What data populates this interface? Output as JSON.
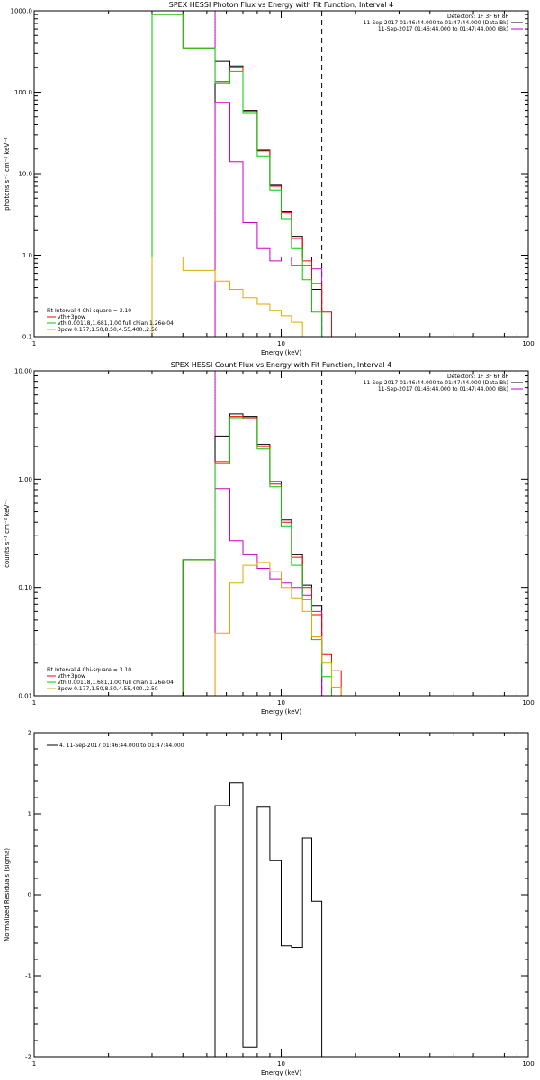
{
  "chart_data": [
    {
      "type": "line",
      "title": "SPEX HESSI Photon Flux vs Energy with Fit Function, Interval 4",
      "xlabel": "Energy (keV)",
      "ylabel": "photons s⁻¹ cm⁻² keV⁻¹",
      "xscale": "log",
      "yscale": "log",
      "xlim": [
        1,
        100
      ],
      "ylim": [
        0.1,
        1000
      ],
      "x_ticks": [
        "1",
        "10",
        "100"
      ],
      "y_ticks": [
        "0.1",
        "1.0",
        "10.0",
        "100.0",
        "1000.0"
      ],
      "vlines": [
        {
          "x": 5.4,
          "style": "dotted",
          "color": "#000000"
        },
        {
          "x": 5.4,
          "style": "solid",
          "color": "#cc00cc"
        },
        {
          "x": 14.6,
          "style": "dashed",
          "color": "#000000"
        }
      ],
      "legend_top": {
        "position": "top-right",
        "lines": [
          {
            "text": "Detectors: 1F 3F 6F 8F",
            "color": ""
          },
          {
            "text": "11-Sep-2017 01:46:44.000 to 01:47:44.000 (Data-Bk)",
            "color": "#000000"
          },
          {
            "text": "11-Sep-2017 01:46:44.000 to 01:47:44.000 (Bk)",
            "color": "#cc00cc"
          }
        ]
      },
      "legend_bottom": {
        "position": "bottom-left",
        "lines": [
          {
            "text": "Fit Interval 4   Chi-square = 3.10",
            "color": ""
          },
          {
            "text": "vth+3pow",
            "color": "#ff0000"
          },
          {
            "text": "vth 0.00118,1.681,1.00  full chian 1.26e-04",
            "color": "#00cc00"
          },
          {
            "text": "3pow 0.177,1.50,8.50,4.55,400.,2.50",
            "color": "#ddaa00"
          }
        ]
      },
      "edges": [
        3.0,
        4.0,
        5.4,
        6.2,
        7.0,
        8.0,
        9.0,
        10.0,
        11.0,
        12.2,
        13.3,
        14.6,
        16.0,
        17.5
      ],
      "series": [
        {
          "name": "Data-Bk",
          "color": "#000000",
          "style": "step",
          "values": [
            null,
            null,
            240,
            210,
            60,
            19,
            7.2,
            3.4,
            1.7,
            0.95,
            0.38,
            0.1,
            null
          ]
        },
        {
          "name": "Bk",
          "color": "#cc00cc",
          "style": "step",
          "values": [
            null,
            null,
            75,
            14,
            2.5,
            1.2,
            0.85,
            0.95,
            0.75,
            0.75,
            0.68,
            null,
            null
          ]
        },
        {
          "name": "vth+3pow",
          "color": "#ff0000",
          "style": "step",
          "values": [
            900,
            350,
            135,
            200,
            58,
            19.5,
            7,
            3.3,
            1.6,
            0.85,
            0.45,
            0.2,
            0.1
          ]
        },
        {
          "name": "vth",
          "color": "#00cc00",
          "style": "step",
          "values": [
            900,
            350,
            130,
            180,
            55,
            16.5,
            6.3,
            2.8,
            1.2,
            0.5,
            0.2,
            0.1,
            null
          ]
        },
        {
          "name": "3pow",
          "color": "#ddaa00",
          "style": "step",
          "values": [
            0.95,
            0.65,
            0.48,
            0.38,
            0.3,
            0.25,
            0.21,
            0.18,
            0.15,
            0.1,
            null,
            null,
            null
          ]
        }
      ]
    },
    {
      "type": "line",
      "title": "SPEX HESSI Count Flux vs Energy with Fit Function, Interval 4",
      "xlabel": "Energy (keV)",
      "ylabel": "counts s⁻¹ cm⁻² keV⁻¹",
      "xscale": "log",
      "yscale": "log",
      "xlim": [
        1,
        100
      ],
      "ylim": [
        0.01,
        10
      ],
      "x_ticks": [
        "1",
        "10",
        "100"
      ],
      "y_ticks": [
        "0.01",
        "0.10",
        "1.00",
        "10.00"
      ],
      "vlines": [
        {
          "x": 5.4,
          "style": "dotted",
          "color": "#000000"
        },
        {
          "x": 5.4,
          "style": "solid",
          "color": "#cc00cc"
        },
        {
          "x": 14.6,
          "style": "dashed",
          "color": "#000000"
        }
      ],
      "legend_top": {
        "position": "top-right",
        "lines": [
          {
            "text": "Detectors: 1F 3F 6F 8F",
            "color": ""
          },
          {
            "text": "11-Sep-2017 01:46:44.000 to 01:47:44.000 (Data-Bk)",
            "color": "#000000"
          },
          {
            "text": "11-Sep-2017 01:46:44.000 to 01:47:44.000 (Bk)",
            "color": "#cc00cc"
          }
        ]
      },
      "legend_bottom": {
        "position": "bottom-left",
        "lines": [
          {
            "text": "Fit Interval 4   Chi-square = 3.10",
            "color": ""
          },
          {
            "text": "vth+3pow",
            "color": "#ff0000"
          },
          {
            "text": "vth 0.00118,1.681,1.00  full chian 1.26e-04",
            "color": "#00cc00"
          },
          {
            "text": "3pow 0.177,1.50,8.50,4.55,400.,2.50",
            "color": "#ddaa00"
          }
        ]
      },
      "edges": [
        3.0,
        4.0,
        5.4,
        6.2,
        7.0,
        8.0,
        9.0,
        10.0,
        11.0,
        12.2,
        13.3,
        14.6,
        16.0,
        17.5
      ],
      "series": [
        {
          "name": "Data-Bk",
          "color": "#000000",
          "style": "step",
          "values": [
            null,
            0.18,
            2.5,
            4.0,
            3.8,
            2.1,
            0.95,
            0.42,
            0.2,
            0.105,
            0.068,
            null,
            null
          ]
        },
        {
          "name": "Bk",
          "color": "#cc00cc",
          "style": "step",
          "values": [
            null,
            null,
            0.82,
            0.27,
            0.2,
            0.15,
            0.12,
            0.11,
            0.1,
            0.085,
            0.06,
            null,
            null
          ]
        },
        {
          "name": "vth+3pow",
          "color": "#ff0000",
          "style": "step",
          "values": [
            0.01,
            0.18,
            1.45,
            3.8,
            3.7,
            2.0,
            0.9,
            0.4,
            0.19,
            0.1,
            0.056,
            0.024,
            0.017
          ]
        },
        {
          "name": "vth",
          "color": "#00cc00",
          "style": "step",
          "values": [
            0.01,
            0.18,
            1.4,
            3.7,
            3.6,
            1.9,
            0.85,
            0.37,
            0.16,
            0.077,
            0.033,
            0.015,
            0.01
          ]
        },
        {
          "name": "3pow",
          "color": "#ddaa00",
          "style": "step",
          "values": [
            null,
            null,
            0.038,
            0.11,
            0.16,
            0.17,
            0.14,
            0.1,
            0.08,
            0.06,
            0.035,
            0.02,
            0.012
          ]
        }
      ]
    },
    {
      "type": "line",
      "title": "",
      "xlabel": "Energy (keV)",
      "ylabel": "Normalized Residuals (sigma)",
      "xscale": "log",
      "yscale": "linear",
      "xlim": [
        1,
        100
      ],
      "ylim": [
        -2,
        2
      ],
      "x_ticks": [
        "1",
        "10",
        "100"
      ],
      "y_ticks": [
        "-2",
        "-1",
        "0",
        "1",
        "2"
      ],
      "legend": {
        "position": "top-left",
        "text": "4. 11-Sep-2017 01:46:44.000 to 01:47:44.000",
        "color": "#000000"
      },
      "edges": [
        5.4,
        6.2,
        7.0,
        8.0,
        9.0,
        10.0,
        11.0,
        12.2,
        13.3,
        14.6
      ],
      "series": [
        {
          "name": "",
          "color": "#000000",
          "style": "step",
          "values": [
            1.1,
            1.38,
            -1.88,
            1.08,
            0.42,
            -0.63,
            -0.65,
            0.7,
            -0.08
          ]
        }
      ]
    }
  ]
}
